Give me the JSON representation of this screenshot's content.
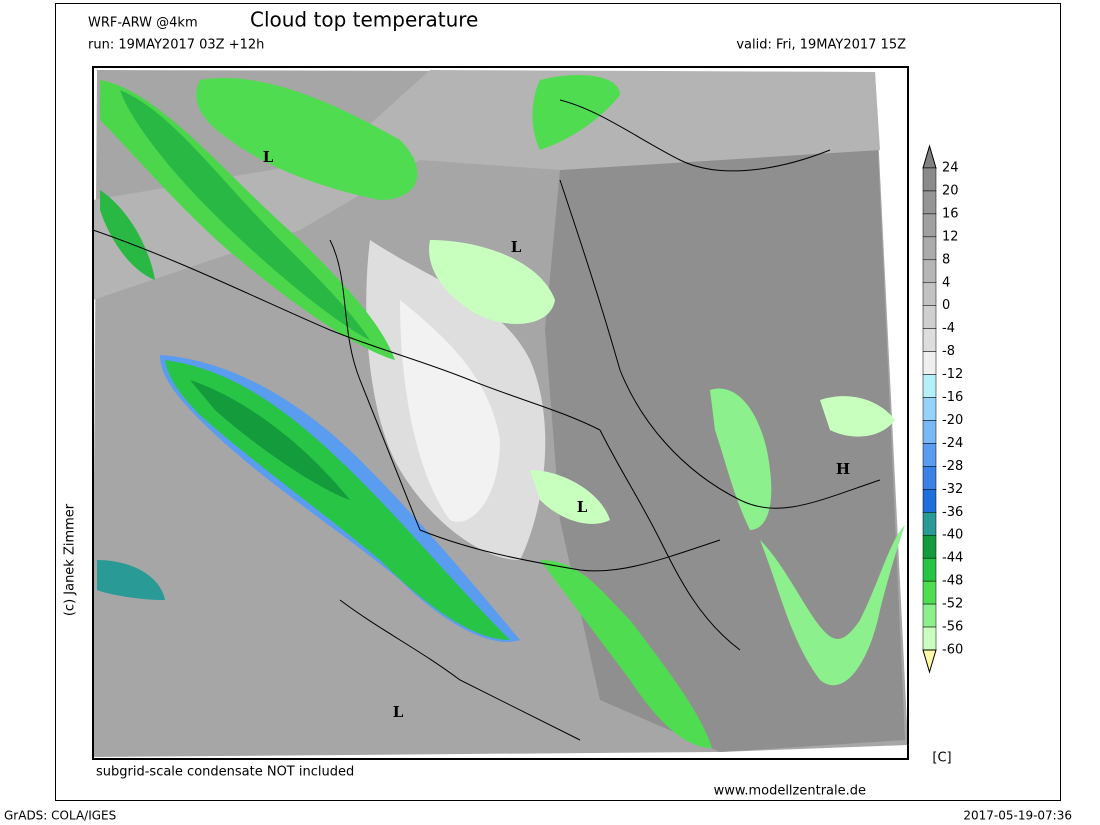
{
  "header": {
    "model": "WRF-ARW @4km",
    "title": "Cloud top temperature",
    "run": "run: 19MAY2017 03Z +12h",
    "valid": "valid: Fri, 19MAY2017 15Z"
  },
  "map": {
    "pressure_labels": [
      "L",
      "L",
      "L",
      "H",
      "L"
    ]
  },
  "colorbar": {
    "ticks": [
      24,
      20,
      16,
      12,
      8,
      4,
      0,
      -4,
      -8,
      -12,
      -16,
      -20,
      -24,
      -28,
      -32,
      -36,
      -40,
      -44,
      -48,
      -52,
      -56,
      -60
    ],
    "colors": [
      "#808080",
      "#8a8a8a",
      "#959595",
      "#a0a0a0",
      "#ababab",
      "#b6b6b6",
      "#c2c2c2",
      "#cfcfcf",
      "#dddddd",
      "#efefef",
      "#b4f0fa",
      "#96d2fa",
      "#78b9f5",
      "#5a9cf0",
      "#3c82e6",
      "#1e6edc",
      "#2a9a96",
      "#149c3c",
      "#28c446",
      "#50dc50",
      "#8cf08c",
      "#c8ffbe",
      "#fffaaa"
    ],
    "unit": "[C]"
  },
  "footer": {
    "note": "subgrid-scale condensate NOT included",
    "website": "www.modellzentrale.de",
    "copyright": "(c) Janek Zimmer",
    "software": "GrADS: COLA/IGES",
    "timestamp": "2017-05-19-07:36"
  }
}
